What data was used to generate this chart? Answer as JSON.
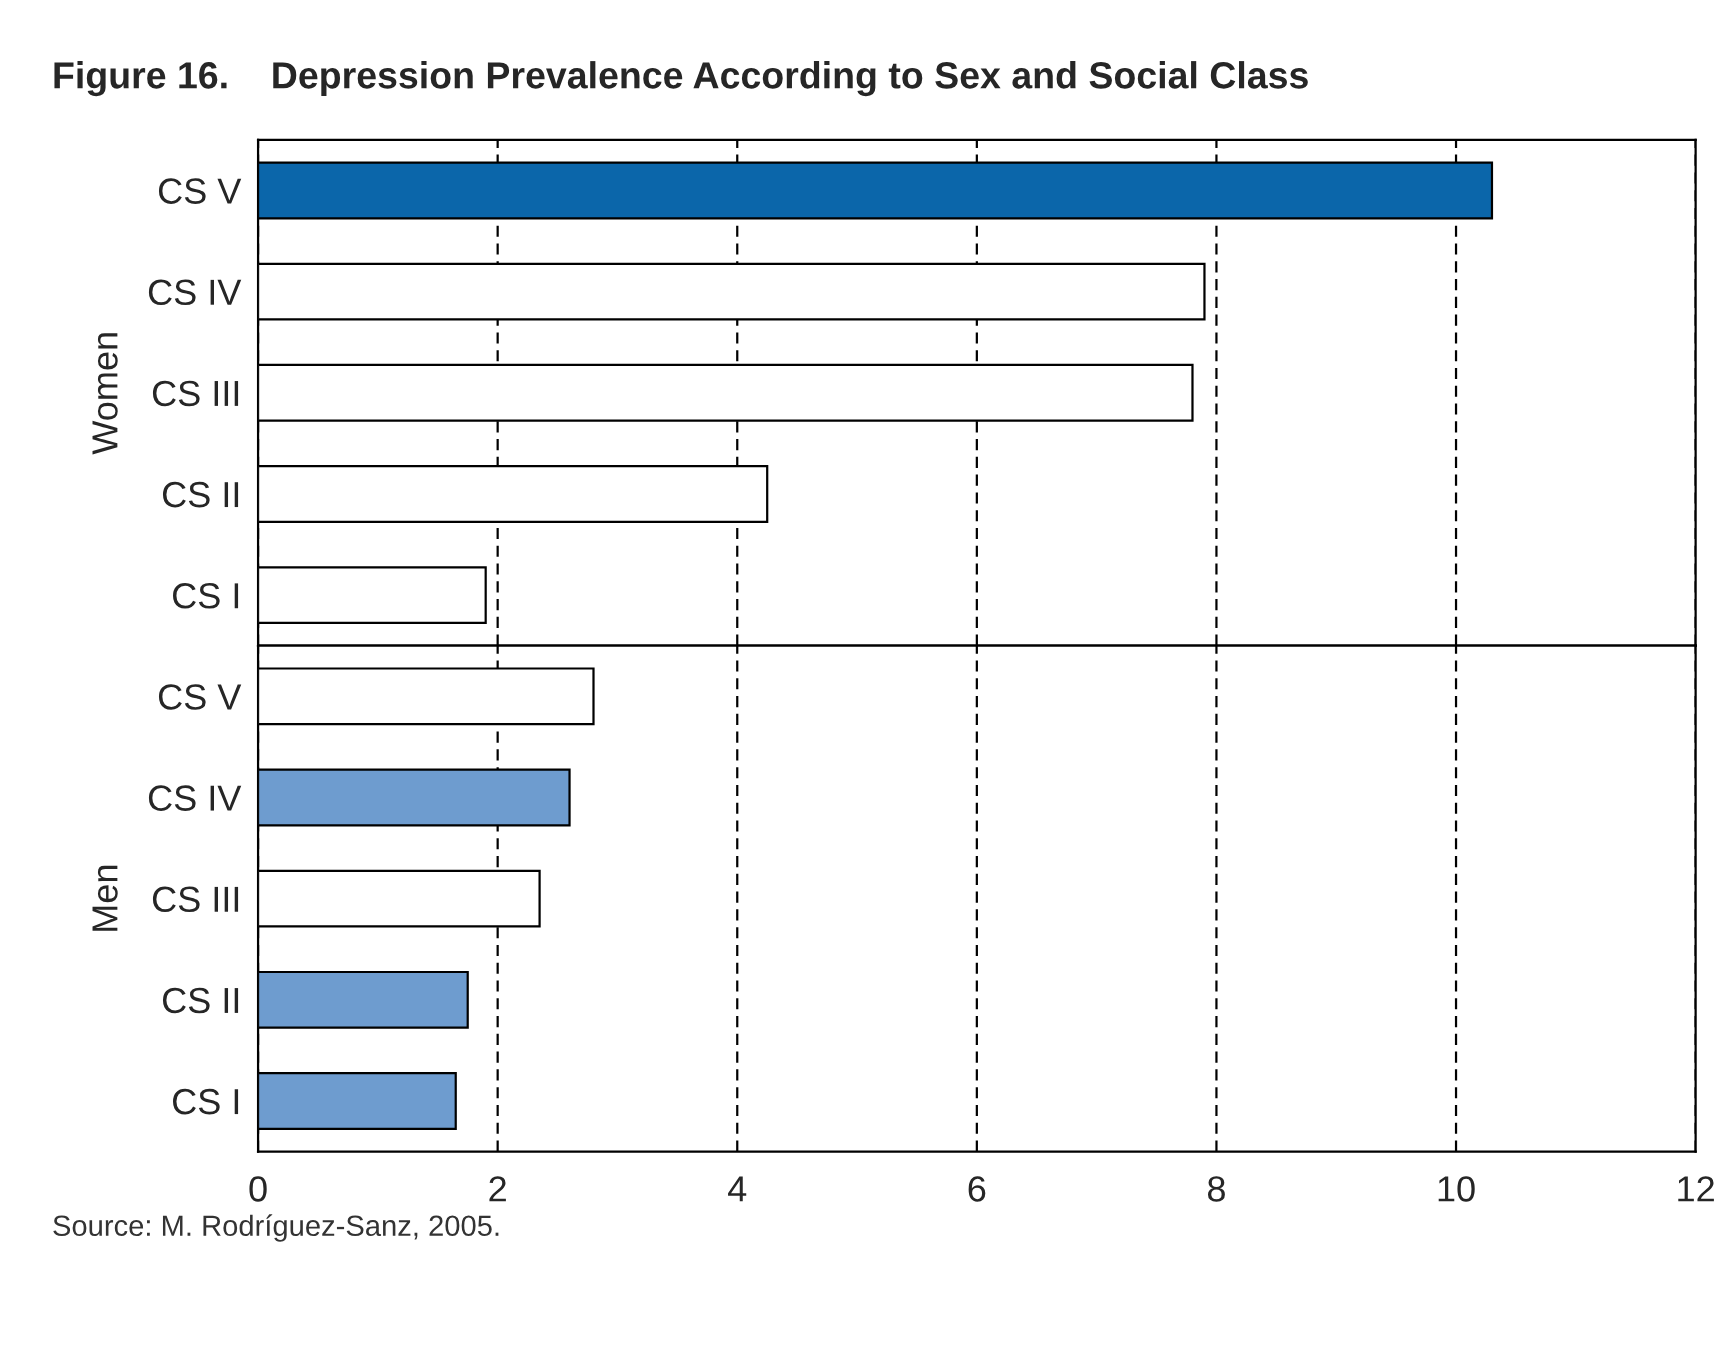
{
  "chart_data": [
    {
      "type": "bar",
      "orientation": "horizontal",
      "title": "Figure 16.    Depression Prevalence According to Sex and Social Class",
      "ylabel": "Women",
      "categories": [
        "CS V",
        "CS IV",
        "CS III",
        "CS II",
        "CS I"
      ],
      "values": [
        10.3,
        7.9,
        7.8,
        4.25,
        1.9
      ],
      "colors": [
        "#0b66aa",
        "#ffffff",
        "#ffffff",
        "#ffffff",
        "#ffffff"
      ],
      "xlim": [
        0,
        12
      ],
      "xticks": [
        0,
        2,
        4,
        6,
        8,
        10,
        12
      ],
      "grid": "x",
      "tick_labels": "y"
    },
    {
      "type": "bar",
      "orientation": "horizontal",
      "ylabel": "Men",
      "categories": [
        "CS V",
        "CS IV",
        "CS III",
        "CS II",
        "CS I"
      ],
      "values": [
        2.8,
        2.6,
        2.35,
        1.75,
        1.65
      ],
      "colors": [
        "#ffffff",
        "#6e9ccf",
        "#ffffff",
        "#6e9ccf",
        "#6e9ccf"
      ],
      "xlim": [
        0,
        12
      ],
      "xticks": [
        0,
        2,
        4,
        6,
        8,
        10,
        12
      ],
      "grid": "x",
      "annotations": [
        "Source: M. Rodríguez-Sanz, 2005."
      ]
    }
  ]
}
